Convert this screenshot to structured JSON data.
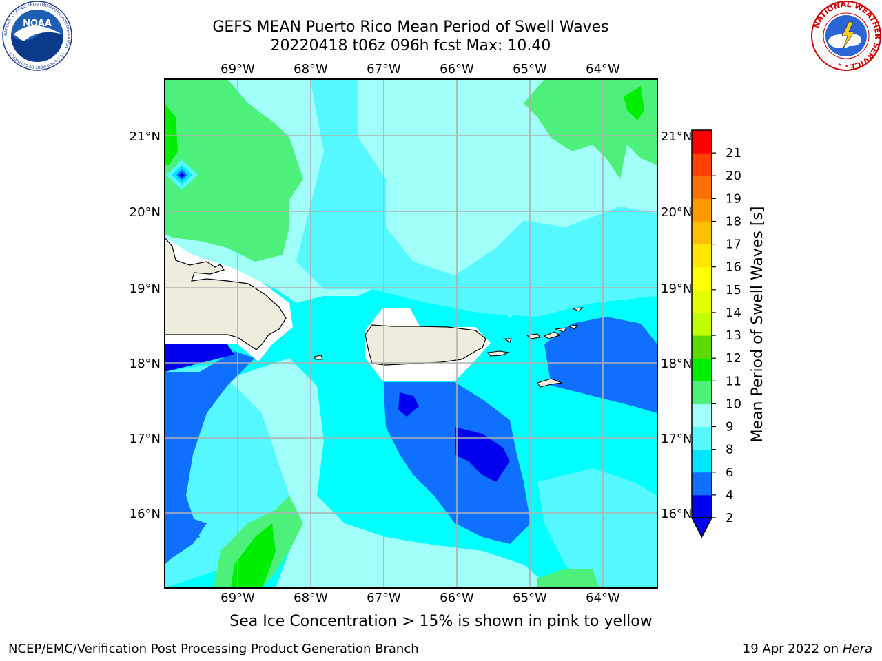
{
  "header": {
    "title_line1": "GEFS MEAN Puerto Rico Mean Period of Swell Waves",
    "title_line2": "20220418 t06z 096h fcst   Max: 10.40"
  },
  "logos": {
    "noaa_text": "NOAA",
    "noaa_ring_text": "NATIONAL OCEANIC AND ATMOSPHERIC ADMINISTRATION · U.S. DEPARTMENT OF COMMERCE",
    "nws_ring_text": "NATIONAL WEATHER SERVICE"
  },
  "map": {
    "lon_labels": [
      "69°W",
      "68°W",
      "67°W",
      "66°W",
      "65°W",
      "64°W"
    ],
    "lat_labels": [
      "21°N",
      "20°N",
      "19°N",
      "18°N",
      "17°N",
      "16°N"
    ],
    "land_color": "#eeecdc",
    "background_color": "#00ffff"
  },
  "colorbar": {
    "label": "Mean Period of Swell Waves [s]",
    "ticks": [
      "2",
      "4",
      "6",
      "8",
      "9",
      "10",
      "11",
      "12",
      "13",
      "14",
      "15",
      "16",
      "17",
      "18",
      "19",
      "20",
      "21"
    ],
    "colors": [
      "#0000ee",
      "#0f6fff",
      "#00e5ff",
      "#55f8ff",
      "#a0fff8",
      "#4df07a",
      "#00ef00",
      "#5fda00",
      "#c0ff00",
      "#e6ff00",
      "#ffff00",
      "#ffe600",
      "#ffbf00",
      "#ff9900",
      "#ff7000",
      "#ff4000",
      "#ff0000"
    ],
    "under_color": "#0000ee"
  },
  "caption": "Sea Ice Concentration > 15% is shown in pink to yellow",
  "footer": {
    "left": "NCEP/EMC/Verification Post Processing Product Generation Branch",
    "right_prefix": "19 Apr 2022 on ",
    "right_machine": "Hera"
  }
}
